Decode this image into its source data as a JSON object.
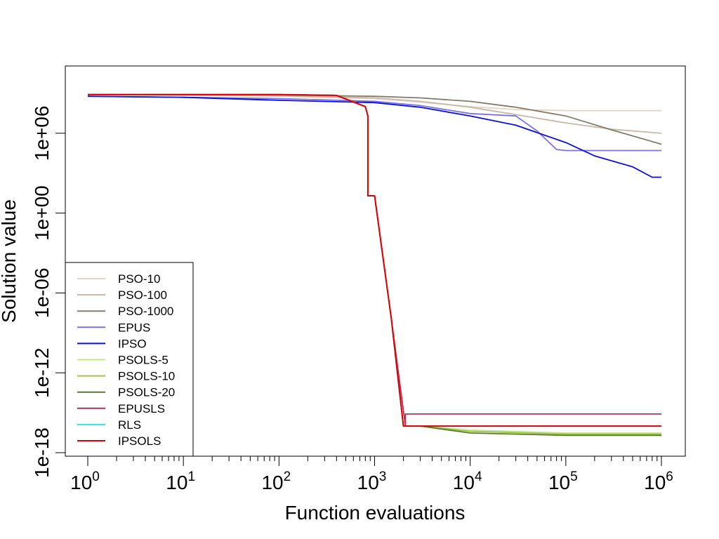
{
  "chart_data": {
    "type": "line",
    "title": "",
    "xlabel": "Function evaluations",
    "ylabel": "Solution value",
    "x_scale": "log10",
    "y_scale": "log10",
    "xlim": [
      1,
      1000000
    ],
    "ylim": [
      1e-18,
      10000000000.0
    ],
    "x_ticks": [
      {
        "value": 1,
        "label_base": "10",
        "label_exp": "0"
      },
      {
        "value": 10,
        "label_base": "10",
        "label_exp": "1"
      },
      {
        "value": 100,
        "label_base": "10",
        "label_exp": "2"
      },
      {
        "value": 1000,
        "label_base": "10",
        "label_exp": "3"
      },
      {
        "value": 10000,
        "label_base": "10",
        "label_exp": "4"
      },
      {
        "value": 100000,
        "label_base": "10",
        "label_exp": "5"
      },
      {
        "value": 1000000,
        "label_base": "10",
        "label_exp": "6"
      }
    ],
    "y_ticks": [
      {
        "value": 1000000.0,
        "label": "1e+06"
      },
      {
        "value": 1,
        "label": "1e+00"
      },
      {
        "value": 1e-06,
        "label": "1e-06"
      },
      {
        "value": 1e-12,
        "label": "1e-12"
      },
      {
        "value": 1e-18,
        "label": "1e-18"
      }
    ],
    "grid": false,
    "legend_position": "bottom-left",
    "series": [
      {
        "name": "PSO-10",
        "color": "#E8D2BE",
        "x": [
          1,
          10,
          100,
          1000,
          3000,
          10000,
          30000,
          100000,
          300000,
          1000000
        ],
        "y": [
          800000000.0,
          700000000.0,
          600000000.0,
          400000000.0,
          220000000.0,
          100000000.0,
          60000000.0,
          50000000.0,
          50000000.0,
          50000000.0
        ]
      },
      {
        "name": "PSO-100",
        "color": "#C8B8A6",
        "x": [
          1,
          10,
          100,
          1000,
          3000,
          10000,
          30000,
          100000,
          300000,
          1000000
        ],
        "y": [
          800000000.0,
          750000000.0,
          650000000.0,
          450000000.0,
          250000000.0,
          90000000.0,
          25000000.0,
          6000000.0,
          2000000.0,
          1000000.0
        ]
      },
      {
        "name": "PSO-1000",
        "color": "#857B6C",
        "x": [
          1,
          10,
          100,
          1000,
          3000,
          10000,
          30000,
          100000,
          300000,
          1000000
        ],
        "y": [
          800000000.0,
          780000000.0,
          750000000.0,
          600000000.0,
          450000000.0,
          250000000.0,
          90000000.0,
          20000000.0,
          1800000.0,
          150000.0
        ]
      },
      {
        "name": "EPUS",
        "color": "#7A72E8",
        "x": [
          1,
          10,
          100,
          1000,
          3000,
          10000,
          30000,
          50000,
          80000,
          100000,
          300000,
          1000000
        ],
        "y": [
          600000000.0,
          500000000.0,
          400000000.0,
          250000000.0,
          120000000.0,
          30000000.0,
          20000000.0,
          1500000.0,
          60000.0,
          50000.0,
          50000.0,
          50000.0
        ]
      },
      {
        "name": "IPSO",
        "color": "#0A10E0",
        "x": [
          1,
          10,
          100,
          1000,
          3000,
          10000,
          30000,
          100000,
          200000,
          500000,
          800000,
          1000000
        ],
        "y": [
          600000000.0,
          500000000.0,
          300000000.0,
          200000000.0,
          90000000.0,
          20000000.0,
          4000000.0,
          200000.0,
          20000.0,
          3000.0,
          500.0,
          500.0
        ]
      },
      {
        "name": "PSOLS-5",
        "color": "#C2E88A",
        "x": [
          1,
          100,
          400,
          800,
          850,
          850,
          1000,
          1500,
          2000,
          3000,
          10000,
          100000,
          1000000
        ],
        "y": [
          800000000.0,
          800000000.0,
          700000000.0,
          100000000.0,
          20000000.0,
          20.0,
          20.0,
          1e-08,
          1e-16,
          1e-16,
          5e-17,
          3e-17,
          3e-17
        ]
      },
      {
        "name": "PSOLS-10",
        "color": "#9AC44A",
        "x": [
          1,
          100,
          400,
          800,
          850,
          850,
          1000,
          1500,
          2000,
          3000,
          10000,
          100000,
          1000000
        ],
        "y": [
          800000000.0,
          800000000.0,
          700000000.0,
          100000000.0,
          20000000.0,
          20.0,
          20.0,
          1e-08,
          1e-16,
          1e-16,
          4e-17,
          2.5e-17,
          2.5e-17
        ]
      },
      {
        "name": "PSOLS-20",
        "color": "#5E7A2E",
        "x": [
          1,
          100,
          400,
          800,
          850,
          850,
          1000,
          1500,
          2000,
          3000,
          10000,
          100000,
          1000000
        ],
        "y": [
          800000000.0,
          800000000.0,
          700000000.0,
          100000000.0,
          20000000.0,
          20.0,
          20.0,
          1e-08,
          1e-16,
          1e-16,
          3e-17,
          2e-17,
          2e-17
        ]
      },
      {
        "name": "EPUSLS",
        "color": "#B03060",
        "x": [
          1,
          100,
          400,
          800,
          850,
          850,
          1000,
          1500,
          2100,
          2100,
          1000000
        ],
        "y": [
          800000000.0,
          800000000.0,
          700000000.0,
          100000000.0,
          20000000.0,
          20.0,
          20.0,
          1e-08,
          1e-16,
          8e-16,
          8e-16
        ]
      },
      {
        "name": "RLS",
        "color": "#30E0F0",
        "x": [
          1,
          100,
          400,
          800,
          850,
          850,
          1000,
          1500,
          2000,
          1000000
        ],
        "y": [
          800000000.0,
          800000000.0,
          700000000.0,
          100000000.0,
          20000000.0,
          20.0,
          20.0,
          1e-08,
          1e-16,
          1e-16
        ]
      },
      {
        "name": "IPSOLS",
        "color": "#E00000",
        "x": [
          1,
          100,
          400,
          800,
          850,
          850,
          1000,
          1500,
          2000,
          1000000
        ],
        "y": [
          800000000.0,
          800000000.0,
          700000000.0,
          100000000.0,
          20000000.0,
          20.0,
          20.0,
          1e-08,
          1e-16,
          1e-16
        ]
      }
    ]
  }
}
